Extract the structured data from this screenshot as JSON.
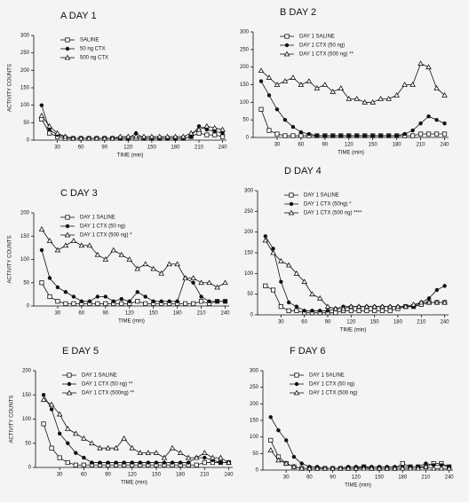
{
  "chart_data": [
    {
      "type": "line",
      "title": "A  DAY 1",
      "xlabel": "TIME (min)",
      "ylabel": "ACTIVITY COUNTS",
      "legend": "upper center",
      "x": [
        10,
        20,
        30,
        40,
        50,
        60,
        70,
        80,
        90,
        100,
        110,
        120,
        130,
        140,
        150,
        160,
        170,
        180,
        190,
        200,
        210,
        220,
        230,
        240
      ],
      "xlim": [
        0,
        245
      ],
      "xticks": [
        30,
        60,
        90,
        120,
        150,
        180,
        210,
        240
      ],
      "ylim": [
        0,
        300
      ],
      "yticks": [
        0,
        50,
        100,
        150,
        200,
        250,
        300
      ],
      "series": [
        {
          "name": "SALINE",
          "color": "#111111",
          "marker": "square",
          "values": [
            60,
            20,
            10,
            5,
            5,
            5,
            5,
            5,
            5,
            5,
            5,
            5,
            5,
            5,
            5,
            5,
            5,
            5,
            5,
            10,
            20,
            15,
            15,
            10
          ]
        },
        {
          "name": "50 ng CTX",
          "color": "#111111",
          "marker": "circle",
          "values": [
            100,
            30,
            15,
            10,
            5,
            5,
            5,
            5,
            5,
            5,
            5,
            5,
            20,
            5,
            5,
            5,
            5,
            5,
            5,
            10,
            40,
            30,
            25,
            20
          ]
        },
        {
          "name": "500 ng CTX",
          "color": "#111111",
          "marker": "triangle",
          "values": [
            70,
            40,
            20,
            10,
            5,
            5,
            5,
            5,
            5,
            5,
            10,
            10,
            10,
            10,
            10,
            10,
            10,
            10,
            10,
            20,
            30,
            40,
            35,
            30
          ]
        }
      ]
    },
    {
      "type": "line",
      "title": "B  DAY 2",
      "xlabel": "TIME (min)",
      "legend": "upper center",
      "x": [
        10,
        20,
        30,
        40,
        50,
        60,
        70,
        80,
        90,
        100,
        110,
        120,
        130,
        140,
        150,
        160,
        170,
        180,
        190,
        200,
        210,
        220,
        230,
        240
      ],
      "xlim": [
        0,
        245
      ],
      "xticks": [
        30,
        60,
        90,
        120,
        150,
        180,
        210,
        240
      ],
      "ylim": [
        0,
        300
      ],
      "yticks": [
        0,
        50,
        100,
        150,
        200,
        250,
        300
      ],
      "series": [
        {
          "name": "DAY 1 SALINE",
          "color": "#111111",
          "marker": "square",
          "values": [
            80,
            20,
            10,
            5,
            5,
            5,
            5,
            5,
            5,
            5,
            5,
            5,
            5,
            5,
            5,
            5,
            5,
            5,
            5,
            5,
            10,
            10,
            10,
            10
          ]
        },
        {
          "name": "DAY 1 CTX (50 ng)",
          "color": "#111111",
          "marker": "circle",
          "values": [
            160,
            120,
            80,
            50,
            30,
            15,
            10,
            5,
            5,
            5,
            5,
            5,
            5,
            5,
            5,
            5,
            5,
            5,
            10,
            20,
            40,
            60,
            50,
            40
          ]
        },
        {
          "name": "DAY 1 CTX (500 ng) **",
          "color": "#111111",
          "marker": "triangle",
          "values": [
            190,
            170,
            150,
            160,
            170,
            150,
            160,
            140,
            150,
            130,
            140,
            110,
            110,
            100,
            100,
            110,
            110,
            120,
            150,
            150,
            210,
            200,
            140,
            120
          ]
        }
      ]
    },
    {
      "type": "line",
      "title": "C  DAY 3",
      "xlabel": "TIME (min)",
      "ylabel": "ACTIVITY COUNTS",
      "legend": "upper center",
      "x": [
        10,
        20,
        30,
        40,
        50,
        60,
        70,
        80,
        90,
        100,
        110,
        120,
        130,
        140,
        150,
        160,
        170,
        180,
        190,
        200,
        210,
        220,
        230,
        240
      ],
      "xlim": [
        0,
        245
      ],
      "xticks": [
        30,
        60,
        90,
        120,
        150,
        180,
        210,
        240
      ],
      "ylim": [
        0,
        200
      ],
      "yticks": [
        0,
        50,
        100,
        150,
        200
      ],
      "series": [
        {
          "name": "DAY 1 SALINE",
          "color": "#111111",
          "marker": "square",
          "values": [
            50,
            20,
            10,
            5,
            5,
            5,
            5,
            5,
            5,
            5,
            5,
            5,
            10,
            5,
            5,
            5,
            5,
            5,
            5,
            5,
            10,
            5,
            10,
            10
          ]
        },
        {
          "name": "DAY 1 CTX (50 ng)",
          "color": "#111111",
          "marker": "circle",
          "values": [
            120,
            60,
            40,
            30,
            20,
            10,
            10,
            20,
            20,
            10,
            15,
            10,
            30,
            20,
            10,
            10,
            10,
            10,
            60,
            50,
            20,
            10,
            10,
            10
          ]
        },
        {
          "name": "DAY 1 CTX (500 ng) *",
          "color": "#111111",
          "marker": "triangle",
          "values": [
            165,
            140,
            120,
            130,
            140,
            130,
            130,
            110,
            100,
            120,
            110,
            100,
            80,
            90,
            80,
            70,
            90,
            90,
            60,
            60,
            50,
            50,
            40,
            50
          ]
        }
      ]
    },
    {
      "type": "line",
      "title": "D  DAY 4",
      "xlabel": "TIME (min)",
      "legend": "upper center",
      "x": [
        10,
        20,
        30,
        40,
        50,
        60,
        70,
        80,
        90,
        100,
        110,
        120,
        130,
        140,
        150,
        160,
        170,
        180,
        190,
        200,
        210,
        220,
        230,
        240
      ],
      "xlim": [
        0,
        245
      ],
      "xticks": [
        30,
        60,
        90,
        120,
        150,
        180,
        210,
        240
      ],
      "ylim": [
        0,
        300
      ],
      "yticks": [
        0,
        50,
        100,
        150,
        200,
        250,
        300
      ],
      "series": [
        {
          "name": "DAY 1 SALINE",
          "color": "#111111",
          "marker": "square",
          "values": [
            70,
            60,
            20,
            10,
            10,
            5,
            5,
            5,
            5,
            5,
            10,
            10,
            10,
            10,
            10,
            10,
            10,
            15,
            20,
            20,
            25,
            30,
            30,
            30
          ]
        },
        {
          "name": "DAY 1 CTX (50ng) *",
          "color": "#111111",
          "marker": "circle",
          "values": [
            190,
            160,
            80,
            30,
            20,
            10,
            10,
            10,
            10,
            15,
            20,
            20,
            20,
            20,
            20,
            20,
            20,
            20,
            20,
            20,
            30,
            40,
            60,
            70
          ]
        },
        {
          "name": "DAY 1 CTX (500 ng) ****",
          "color": "#111111",
          "marker": "triangle",
          "values": [
            180,
            150,
            130,
            120,
            100,
            80,
            50,
            40,
            20,
            15,
            15,
            20,
            20,
            20,
            20,
            20,
            20,
            20,
            20,
            25,
            30,
            30,
            30,
            30
          ]
        }
      ]
    },
    {
      "type": "line",
      "title": "E  DAY 5",
      "xlabel": "TIME (min)",
      "ylabel": "ACTIVITY COUNTS",
      "legend": "upper center",
      "x": [
        10,
        20,
        30,
        40,
        50,
        60,
        70,
        80,
        90,
        100,
        110,
        120,
        130,
        140,
        150,
        160,
        170,
        180,
        190,
        200,
        210,
        220,
        230,
        240
      ],
      "xlim": [
        0,
        245
      ],
      "xticks": [
        30,
        60,
        90,
        120,
        150,
        180,
        210,
        240
      ],
      "ylim": [
        0,
        200
      ],
      "yticks": [
        0,
        50,
        100,
        150,
        200
      ],
      "series": [
        {
          "name": "DAY 1 SALINE",
          "color": "#111111",
          "marker": "square",
          "values": [
            90,
            40,
            20,
            10,
            5,
            5,
            5,
            5,
            5,
            5,
            5,
            5,
            5,
            5,
            5,
            5,
            5,
            5,
            5,
            5,
            10,
            10,
            10,
            10
          ]
        },
        {
          "name": "DAY 1 CTX (50 ng) **",
          "color": "#111111",
          "marker": "circle",
          "values": [
            150,
            120,
            70,
            50,
            30,
            20,
            10,
            10,
            10,
            10,
            10,
            10,
            10,
            10,
            10,
            10,
            10,
            10,
            10,
            20,
            20,
            15,
            10,
            10
          ]
        },
        {
          "name": "DAY 1 CTX (500ng) **",
          "color": "#111111",
          "marker": "triangle",
          "values": [
            140,
            130,
            110,
            80,
            70,
            60,
            50,
            40,
            40,
            40,
            60,
            40,
            30,
            30,
            30,
            20,
            40,
            30,
            20,
            20,
            30,
            20,
            20,
            10
          ]
        }
      ]
    },
    {
      "type": "line",
      "title": "F  DAY 6",
      "xlabel": "TIME (min)",
      "legend": "upper center",
      "x": [
        10,
        20,
        30,
        40,
        50,
        60,
        70,
        80,
        90,
        100,
        110,
        120,
        130,
        140,
        150,
        160,
        170,
        180,
        190,
        200,
        210,
        220,
        230,
        240
      ],
      "xlim": [
        0,
        245
      ],
      "xticks": [
        30,
        60,
        90,
        120,
        150,
        180,
        210,
        240
      ],
      "ylim": [
        0,
        300
      ],
      "yticks": [
        0,
        50,
        100,
        150,
        200,
        250,
        300
      ],
      "series": [
        {
          "name": "DAY 1 SALINE",
          "color": "#111111",
          "marker": "square",
          "values": [
            90,
            40,
            20,
            10,
            5,
            5,
            5,
            5,
            5,
            5,
            5,
            5,
            10,
            5,
            5,
            5,
            5,
            20,
            10,
            10,
            10,
            20,
            20,
            10
          ]
        },
        {
          "name": "DAY 1 CTX (50 ng)",
          "color": "#111111",
          "marker": "circle",
          "values": [
            160,
            120,
            90,
            40,
            20,
            10,
            10,
            5,
            5,
            5,
            10,
            10,
            10,
            10,
            10,
            10,
            10,
            10,
            10,
            10,
            20,
            15,
            15,
            10
          ]
        },
        {
          "name": "DAY 1 CTX (500 ng)",
          "color": "#111111",
          "marker": "triangle",
          "values": [
            60,
            30,
            20,
            10,
            5,
            5,
            5,
            5,
            5,
            5,
            5,
            5,
            5,
            5,
            5,
            5,
            5,
            5,
            5,
            5,
            10,
            5,
            5,
            5
          ]
        }
      ]
    }
  ]
}
